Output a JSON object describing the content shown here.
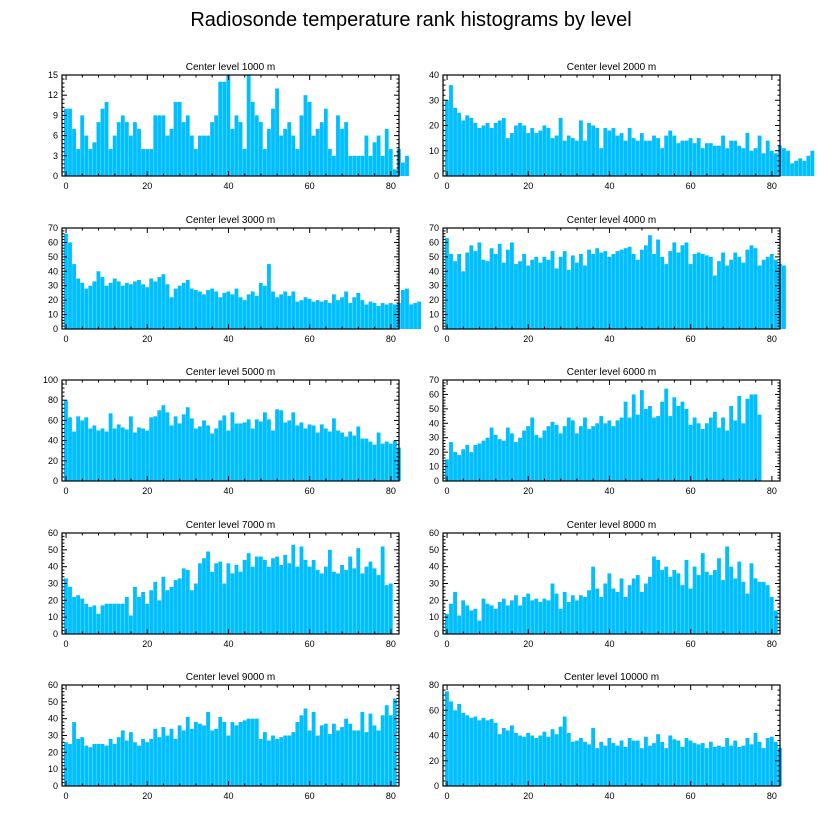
{
  "figure": {
    "title": "Radiosonde temperature rank histograms by level"
  },
  "colors": {
    "bar": "#00BFFF",
    "axis": "#000000"
  },
  "chart_data": [
    {
      "type": "bar",
      "title": "Center level 1000 m",
      "xlim": [
        -1,
        82
      ],
      "ylim": [
        0,
        15
      ],
      "xticks": [
        0,
        20,
        40,
        60,
        80
      ],
      "yticks": [
        0,
        3,
        6,
        9,
        12,
        15
      ],
      "values": [
        10,
        10,
        7,
        4,
        9,
        6,
        4,
        5,
        8,
        10,
        11,
        4,
        6,
        8,
        9,
        8,
        6,
        8,
        7,
        4,
        4,
        4,
        9,
        9,
        9,
        6,
        7,
        11,
        11,
        8,
        9,
        6,
        4,
        6,
        6,
        6,
        8,
        9,
        14,
        14,
        15,
        7,
        9,
        8,
        4,
        15,
        11,
        9,
        8,
        4,
        7,
        10,
        13,
        6,
        7,
        8,
        6,
        4,
        9,
        12,
        11,
        6,
        7,
        8,
        10,
        4,
        3,
        9,
        7,
        8,
        3,
        3,
        3,
        3,
        6,
        3,
        5,
        6,
        3,
        7,
        4,
        1,
        4,
        2,
        3
      ]
    },
    {
      "type": "bar",
      "title": "Center level 2000 m",
      "xlim": [
        -1,
        82
      ],
      "ylim": [
        0,
        40
      ],
      "xticks": [
        0,
        20,
        40,
        60,
        80
      ],
      "yticks": [
        0,
        10,
        20,
        30,
        40
      ],
      "values": [
        30,
        36,
        27,
        25,
        22,
        24,
        23,
        21,
        19,
        20,
        21,
        19,
        21,
        22,
        23,
        15,
        17,
        20,
        21,
        20,
        17,
        19,
        17,
        18,
        20,
        19,
        15,
        16,
        23,
        14,
        16,
        15,
        14,
        22,
        14,
        21,
        20,
        19,
        11,
        19,
        18,
        19,
        16,
        17,
        14,
        19,
        15,
        14,
        17,
        14,
        14,
        16,
        15,
        11,
        16,
        18,
        16,
        13,
        14,
        14,
        15,
        13,
        15,
        11,
        13,
        13,
        12,
        12,
        16,
        11,
        14,
        14,
        12,
        11,
        17,
        10,
        11,
        16,
        9,
        14,
        10,
        9,
        12,
        11,
        10,
        5,
        6,
        7,
        6,
        8,
        10
      ]
    },
    {
      "type": "bar",
      "title": "Center level 3000 m",
      "xlim": [
        -1,
        82
      ],
      "ylim": [
        0,
        70
      ],
      "xticks": [
        0,
        20,
        40,
        60,
        80
      ],
      "yticks": [
        0,
        10,
        20,
        30,
        40,
        50,
        60,
        70
      ],
      "values": [
        66,
        60,
        45,
        35,
        32,
        28,
        30,
        33,
        40,
        36,
        30,
        32,
        35,
        33,
        30,
        32,
        31,
        33,
        34,
        31,
        29,
        35,
        33,
        36,
        38,
        31,
        22,
        28,
        30,
        32,
        34,
        28,
        27,
        26,
        24,
        27,
        28,
        26,
        22,
        25,
        26,
        24,
        28,
        22,
        20,
        24,
        26,
        23,
        32,
        30,
        45,
        26,
        22,
        24,
        26,
        23,
        26,
        19,
        20,
        22,
        21,
        19,
        20,
        19,
        20,
        18,
        24,
        20,
        22,
        26,
        18,
        22,
        25,
        20,
        17,
        19,
        18,
        16,
        18,
        17,
        18,
        17,
        18,
        27,
        28,
        17,
        18,
        19
      ]
    },
    {
      "type": "bar",
      "title": "Center level 4000 m",
      "xlim": [
        -1,
        82
      ],
      "ylim": [
        0,
        70
      ],
      "xticks": [
        0,
        20,
        40,
        60,
        80
      ],
      "yticks": [
        0,
        10,
        20,
        30,
        40,
        50,
        60,
        70
      ],
      "values": [
        63,
        52,
        47,
        52,
        40,
        53,
        58,
        54,
        60,
        48,
        47,
        56,
        52,
        59,
        46,
        55,
        60,
        45,
        47,
        52,
        44,
        48,
        50,
        46,
        50,
        48,
        54,
        42,
        50,
        54,
        41,
        51,
        46,
        52,
        44,
        55,
        52,
        56,
        53,
        54,
        50,
        52,
        54,
        55,
        56,
        57,
        52,
        48,
        55,
        58,
        65,
        52,
        62,
        50,
        45,
        54,
        60,
        53,
        58,
        60,
        45,
        52,
        53,
        52,
        51,
        50,
        37,
        47,
        53,
        44,
        48,
        53,
        50,
        46,
        55,
        58,
        56,
        44,
        48,
        50,
        52,
        48,
        45,
        44
      ]
    },
    {
      "type": "bar",
      "title": "Center level 5000 m",
      "xlim": [
        -1,
        82
      ],
      "ylim": [
        0,
        100
      ],
      "xticks": [
        0,
        20,
        40,
        60,
        80
      ],
      "yticks": [
        0,
        20,
        40,
        60,
        80,
        100
      ],
      "values": [
        80,
        63,
        49,
        64,
        60,
        63,
        52,
        55,
        50,
        52,
        49,
        67,
        52,
        56,
        53,
        51,
        64,
        48,
        53,
        52,
        50,
        63,
        64,
        70,
        75,
        68,
        55,
        64,
        57,
        66,
        73,
        62,
        52,
        54,
        60,
        55,
        47,
        52,
        60,
        65,
        50,
        68,
        57,
        57,
        58,
        61,
        52,
        61,
        59,
        68,
        61,
        50,
        71,
        70,
        58,
        60,
        68,
        55,
        58,
        52,
        56,
        55,
        48,
        56,
        52,
        49,
        62,
        50,
        48,
        44,
        49,
        45,
        54,
        42,
        42,
        39,
        36,
        48,
        37,
        39,
        37,
        40,
        33
      ]
    },
    {
      "type": "bar",
      "title": "Center level 6000 m",
      "xlim": [
        -1,
        82
      ],
      "ylim": [
        0,
        70
      ],
      "xticks": [
        0,
        20,
        40,
        60,
        80
      ],
      "yticks": [
        0,
        10,
        20,
        30,
        40,
        50,
        60,
        70
      ],
      "values": [
        15,
        27,
        20,
        18,
        22,
        25,
        20,
        25,
        26,
        28,
        30,
        37,
        32,
        29,
        28,
        37,
        33,
        27,
        30,
        35,
        38,
        44,
        32,
        30,
        35,
        38,
        41,
        39,
        33,
        38,
        44,
        42,
        33,
        38,
        44,
        36,
        38,
        40,
        45,
        40,
        42,
        38,
        42,
        44,
        55,
        44,
        60,
        46,
        63,
        50,
        52,
        44,
        45,
        55,
        64,
        45,
        58,
        52,
        55,
        50,
        39,
        44,
        40,
        36,
        40,
        44,
        48,
        37,
        44,
        35,
        52,
        42,
        59,
        40,
        57,
        60,
        60,
        46
      ]
    },
    {
      "type": "bar",
      "title": "Center level 7000 m",
      "xlim": [
        -1,
        82
      ],
      "ylim": [
        0,
        60
      ],
      "xticks": [
        0,
        20,
        40,
        60,
        80
      ],
      "yticks": [
        0,
        10,
        20,
        30,
        40,
        50,
        60
      ],
      "values": [
        33,
        28,
        22,
        23,
        21,
        18,
        16,
        17,
        12,
        17,
        18,
        18,
        18,
        18,
        18,
        22,
        11,
        28,
        22,
        25,
        18,
        26,
        31,
        20,
        34,
        26,
        28,
        32,
        33,
        39,
        38,
        26,
        30,
        42,
        45,
        49,
        37,
        42,
        43,
        30,
        42,
        36,
        41,
        37,
        44,
        48,
        40,
        46,
        46,
        44,
        40,
        45,
        46,
        41,
        47,
        42,
        53,
        40,
        52,
        44,
        40,
        44,
        38,
        36,
        40,
        50,
        37,
        36,
        41,
        38,
        46,
        39,
        51,
        36,
        40,
        43,
        39,
        35,
        52,
        29,
        30
      ]
    },
    {
      "type": "bar",
      "title": "Center level 8000 m",
      "xlim": [
        -1,
        82
      ],
      "ylim": [
        0,
        60
      ],
      "xticks": [
        0,
        20,
        40,
        60,
        80
      ],
      "yticks": [
        0,
        10,
        20,
        30,
        40,
        50,
        60
      ],
      "values": [
        12,
        18,
        25,
        11,
        20,
        17,
        14,
        15,
        8,
        21,
        18,
        17,
        15,
        19,
        21,
        17,
        20,
        23,
        17,
        22,
        24,
        20,
        21,
        19,
        21,
        20,
        30,
        24,
        15,
        25,
        19,
        23,
        20,
        23,
        22,
        26,
        40,
        27,
        22,
        30,
        36,
        27,
        25,
        33,
        22,
        29,
        33,
        35,
        25,
        30,
        34,
        46,
        44,
        38,
        40,
        34,
        38,
        36,
        29,
        44,
        27,
        40,
        35,
        48,
        37,
        35,
        38,
        45,
        32,
        52,
        40,
        33,
        43,
        31,
        24,
        42,
        33,
        31,
        31,
        29,
        22,
        14
      ]
    },
    {
      "type": "bar",
      "title": "Center level 9000 m",
      "xlim": [
        -1,
        82
      ],
      "ylim": [
        0,
        60
      ],
      "xticks": [
        0,
        20,
        40,
        60,
        80
      ],
      "yticks": [
        0,
        10,
        20,
        30,
        40,
        50,
        60
      ],
      "values": [
        26,
        25,
        38,
        28,
        29,
        24,
        23,
        25,
        25,
        25,
        24,
        28,
        25,
        29,
        33,
        27,
        32,
        26,
        24,
        28,
        26,
        28,
        34,
        29,
        35,
        30,
        34,
        28,
        36,
        33,
        41,
        34,
        38,
        37,
        36,
        44,
        33,
        34,
        41,
        38,
        30,
        38,
        36,
        38,
        39,
        40,
        40,
        40,
        28,
        32,
        27,
        30,
        28,
        29,
        30,
        30,
        32,
        38,
        42,
        46,
        33,
        44,
        30,
        36,
        37,
        31,
        37,
        33,
        35,
        40,
        37,
        33,
        33,
        44,
        32,
        43,
        36,
        33,
        42,
        48,
        42,
        52
      ]
    },
    {
      "type": "bar",
      "title": "Center level 10000 m",
      "xlim": [
        -1,
        82
      ],
      "ylim": [
        0,
        80
      ],
      "xticks": [
        0,
        20,
        40,
        60,
        80
      ],
      "yticks": [
        0,
        20,
        40,
        60,
        80
      ],
      "values": [
        75,
        67,
        60,
        65,
        58,
        56,
        54,
        55,
        52,
        54,
        52,
        53,
        50,
        41,
        46,
        44,
        48,
        42,
        40,
        39,
        42,
        40,
        38,
        40,
        43,
        39,
        45,
        41,
        47,
        55,
        42,
        35,
        36,
        38,
        35,
        33,
        46,
        30,
        35,
        32,
        38,
        34,
        32,
        36,
        31,
        38,
        36,
        36,
        30,
        39,
        32,
        34,
        41,
        35,
        30,
        40,
        37,
        36,
        31,
        38,
        36,
        34,
        33,
        34,
        30,
        35,
        31,
        32,
        31,
        38,
        32,
        36,
        31,
        32,
        38,
        33,
        42,
        35,
        30,
        38,
        39,
        35,
        30
      ]
    }
  ]
}
